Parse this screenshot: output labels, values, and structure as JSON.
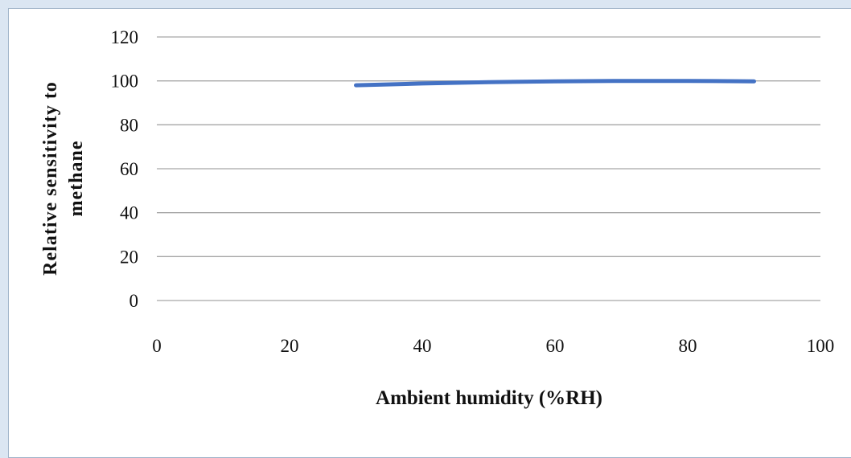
{
  "chart_data": {
    "type": "line",
    "title": "",
    "xlabel": "Ambient humidity (%RH)",
    "ylabel_lines": [
      "Relative sensitivity to",
      "methane"
    ],
    "xlim": [
      0,
      100
    ],
    "ylim": [
      0,
      120
    ],
    "x_ticks": [
      0,
      20,
      40,
      60,
      80,
      100
    ],
    "y_ticks": [
      0,
      20,
      40,
      60,
      80,
      100,
      120
    ],
    "grid": "horizontal",
    "legend": "none",
    "series": [
      {
        "color": "#4472c4",
        "x": [
          30,
          40,
          50,
          60,
          70,
          80,
          90
        ],
        "y": [
          98,
          98.8,
          99.4,
          99.8,
          100,
          100,
          99.8
        ]
      }
    ]
  },
  "colors": {
    "background": "#dbe6f2",
    "grid": "#a6a6a6",
    "line": "#4472c4"
  }
}
